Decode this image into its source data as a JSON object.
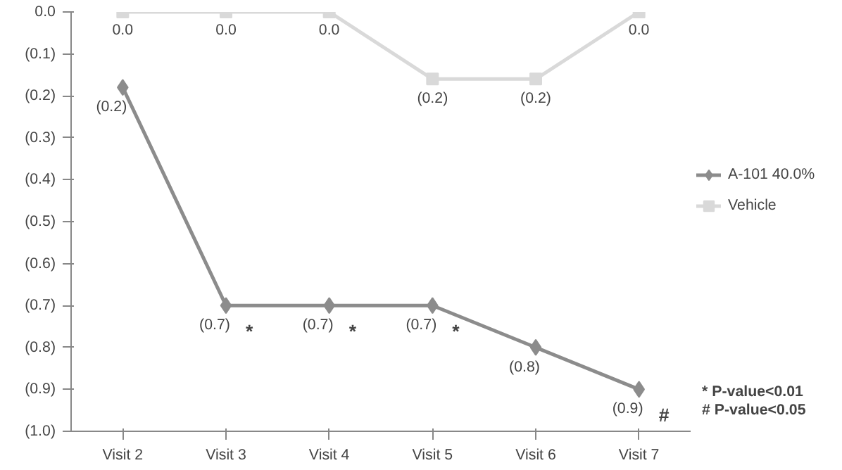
{
  "chart_data": {
    "type": "line",
    "categories": [
      "Visit 2",
      "Visit 3",
      "Visit 4",
      "Visit 5",
      "Visit 6",
      "Visit 7"
    ],
    "series": [
      {
        "name": "A-101 40.0%",
        "color": "#8c8c8c",
        "marker": "diamond",
        "values": [
          -0.18,
          -0.7,
          -0.7,
          -0.7,
          -0.8,
          -0.9
        ],
        "value_labels": [
          "(0.2)",
          "(0.7)",
          "(0.7)",
          "(0.7)",
          "(0.8)",
          "(0.9)"
        ]
      },
      {
        "name": "Vehicle",
        "color": "#d9d9d9",
        "marker": "square",
        "values": [
          0,
          0,
          0,
          -0.16,
          -0.16,
          0
        ],
        "value_labels": [
          "0.0",
          "0.0",
          "0.0",
          "(0.2)",
          "(0.2)",
          "0.0"
        ]
      }
    ],
    "ylim": [
      -1.0,
      0
    ],
    "yticks": [
      {
        "value": 0,
        "label": "0.0"
      },
      {
        "value": -0.1,
        "label": "(0.1)"
      },
      {
        "value": -0.2,
        "label": "(0.2)"
      },
      {
        "value": -0.3,
        "label": "(0.3)"
      },
      {
        "value": -0.4,
        "label": "(0.4)"
      },
      {
        "value": -0.5,
        "label": "(0.5)"
      },
      {
        "value": -0.6,
        "label": "(0.6)"
      },
      {
        "value": -0.7,
        "label": "(0.7)"
      },
      {
        "value": -0.8,
        "label": "(0.8)"
      },
      {
        "value": -0.9,
        "label": "(0.9)"
      },
      {
        "value": -1.0,
        "label": "(1.0)"
      }
    ],
    "annotations": [
      {
        "text": "*",
        "x": "Visit 3",
        "y": -0.7
      },
      {
        "text": "*",
        "x": "Visit 4",
        "y": -0.7
      },
      {
        "text": "*",
        "x": "Visit 5",
        "y": -0.7
      },
      {
        "text": "#",
        "x": "Visit 7",
        "y": -0.9
      },
      "* P-value<0.01",
      "# P-value<0.05"
    ],
    "legend": "right",
    "grid": false,
    "line_style": "solid"
  }
}
